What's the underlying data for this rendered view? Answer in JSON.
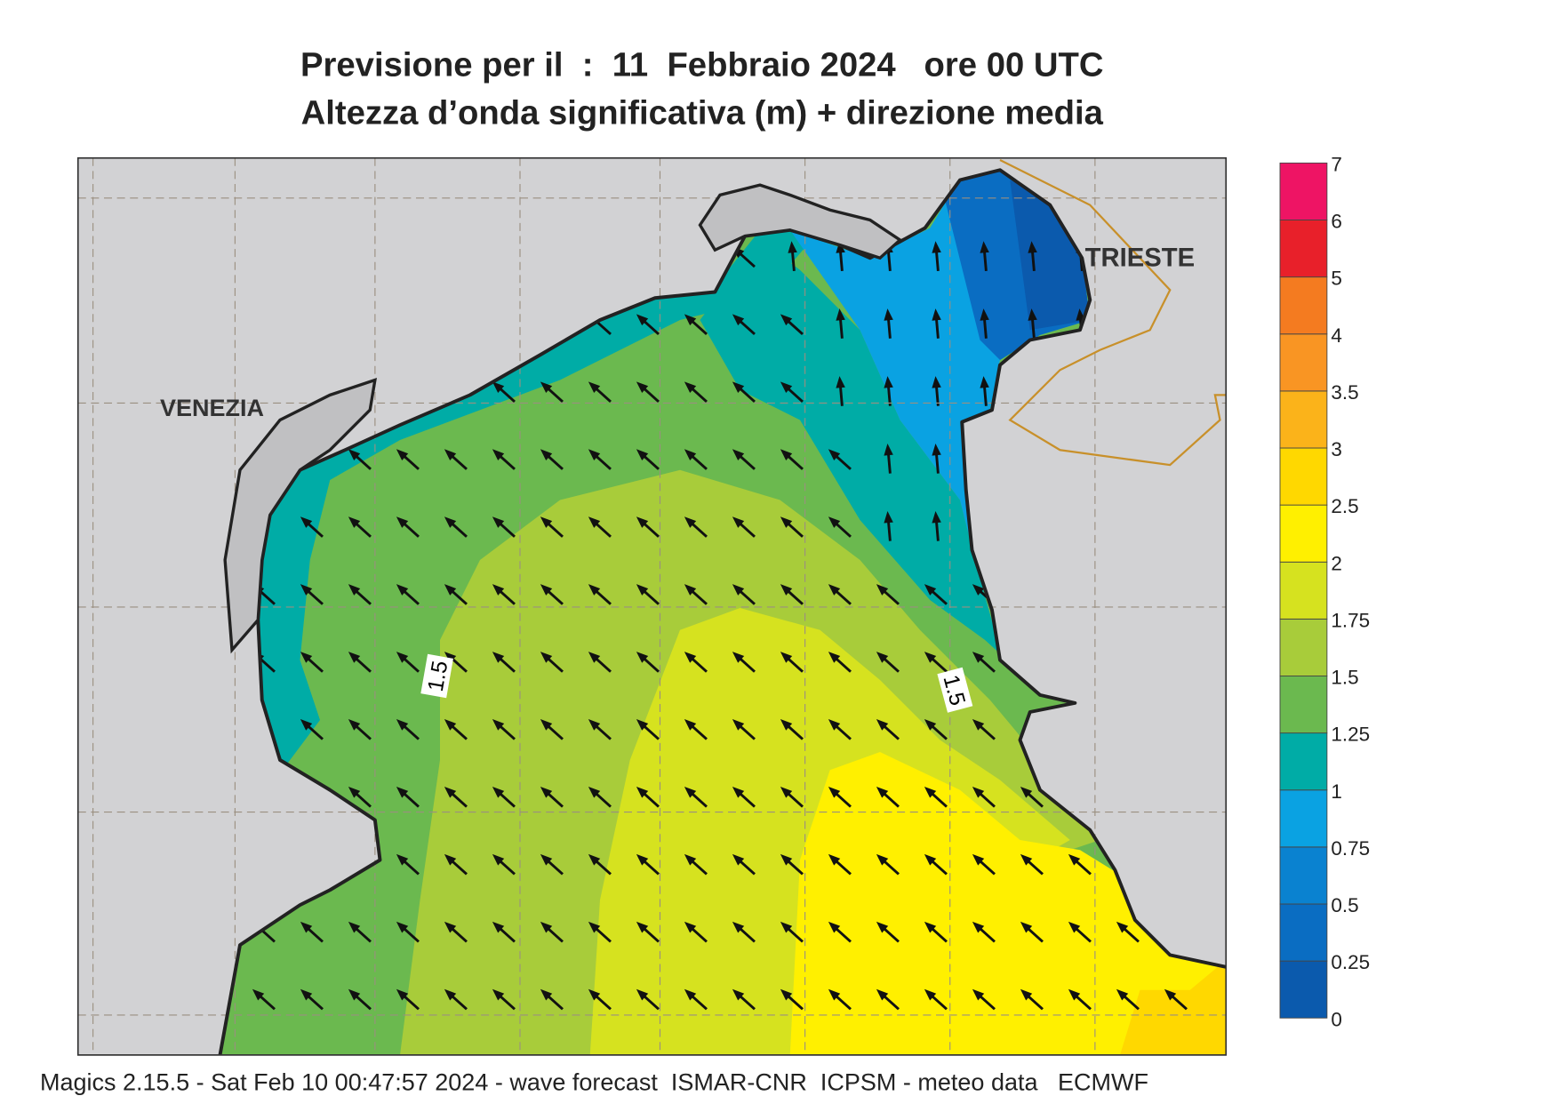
{
  "header": {
    "title_line1": "Previsione per il  :  11  Febbraio 2024   ore 00 UTC",
    "title_line2": "Altezza d’onda significativa (m) + direzione media"
  },
  "map": {
    "place_labels": [
      "VENEZIA",
      "TRIESTE"
    ],
    "contour_labels": [
      "1.5",
      "1.5"
    ]
  },
  "colorbar": {
    "levels": [
      0,
      0.25,
      0.5,
      0.75,
      1,
      1.25,
      1.5,
      1.75,
      2,
      2.5,
      3,
      3.5,
      4,
      5,
      6,
      7
    ],
    "colors": [
      "#0b5aad",
      "#0a6dc2",
      "#0a82d0",
      "#0aa2e2",
      "#00aca6",
      "#6bb94f",
      "#a8cc3a",
      "#d6e21f",
      "#fff000",
      "#ffd800",
      "#fbb31a",
      "#f99523",
      "#f47b20",
      "#e8202a",
      "#ee1464"
    ]
  },
  "footer": {
    "text": "Magics 2.15.5 - Sat Feb 10 00:47:57 2024 - wave forecast  ISMAR-CNR  ICPSM - meteo data   ECMWF"
  }
}
